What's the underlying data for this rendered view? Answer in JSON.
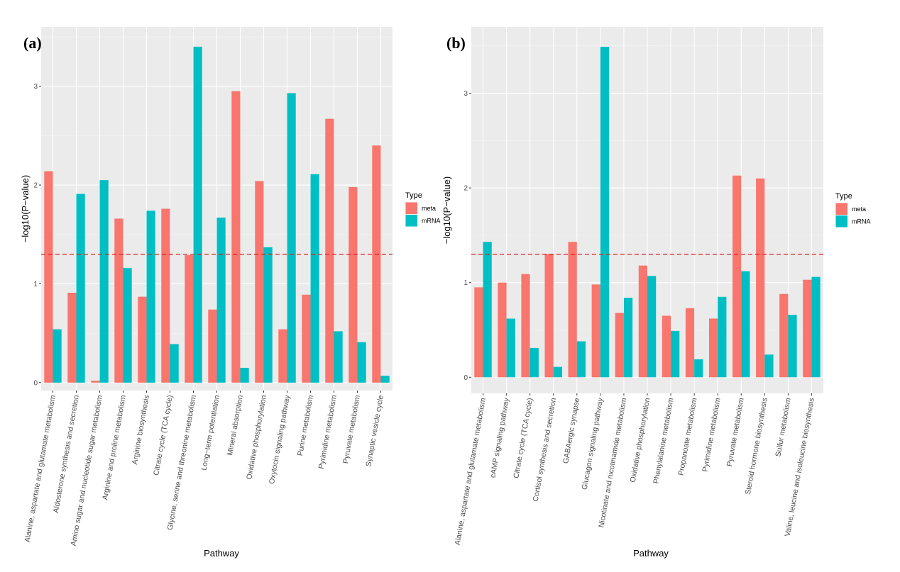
{
  "colors": {
    "meta": "#F8766D",
    "mRNA": "#00BFC4",
    "threshold": "#E41A1C"
  },
  "chart_data": [
    {
      "type": "bar",
      "panel_tag": "(a)",
      "xlabel": "Pathway",
      "ylabel": "−log10(P−value)",
      "ylim": [
        -0.08,
        3.6
      ],
      "yticks": [
        0,
        1,
        2,
        3
      ],
      "grid": true,
      "threshold": 1.3,
      "legend": {
        "title": "Type",
        "placement": "right",
        "entries": [
          "meta",
          "mRNA"
        ]
      },
      "categories": [
        "Alanine, aspartate and glutamate metabolism",
        "Aldosterone synthesis and secretion",
        "Amino sugar and nucleotide sugar metabolism",
        "Arginine and proline metabolism",
        "Arginine biosynthesis",
        "Citrate cycle (TCA cycle)",
        "Glycine, serine and threonine metabolism",
        "Long−term potentiation",
        "Mineral absorption",
        "Oxidative phosphorylation",
        "Oxytocin signaling pathway",
        "Purine metabolism",
        "Pyrimidine metabolism",
        "Pyruvate metabolism",
        "Synaptic vesicle cycle"
      ],
      "series": [
        {
          "name": "meta",
          "values": [
            2.14,
            0.91,
            0.02,
            1.66,
            0.87,
            1.76,
            1.29,
            0.74,
            2.95,
            2.04,
            0.54,
            0.89,
            2.67,
            1.98,
            2.4
          ]
        },
        {
          "name": "mRNA",
          "values": [
            0.54,
            1.91,
            2.05,
            1.16,
            1.74,
            0.39,
            3.4,
            1.67,
            0.15,
            1.37,
            2.93,
            2.11,
            0.52,
            0.41,
            0.07
          ]
        }
      ]
    },
    {
      "type": "bar",
      "panel_tag": "(b)",
      "xlabel": "Pathway",
      "ylabel": "−log10(P−value)",
      "ylim": [
        -0.17,
        3.7
      ],
      "yticks": [
        0,
        1,
        2,
        3
      ],
      "grid": true,
      "threshold": 1.3,
      "legend": {
        "title": "Type",
        "placement": "right",
        "entries": [
          "meta",
          "mRNA"
        ]
      },
      "categories": [
        "Alanine, aspartate and glutamate metabolism",
        "cAMP signaling pathway",
        "Citrate cycle (TCA cycle)",
        "Cortisol synthesis and secretion",
        "GABAergic synapse",
        "Glucagon signaling pathway",
        "Nicotinate and nicotinamide metabolism",
        "Oxidative phosphorylation",
        "Phenylalanine metabolism",
        "Propanoate metabolism",
        "Pyrimidine metabolism",
        "Pyruvate metabolism",
        "Steroid hormone biosynthesis",
        "Sulfur metabolism",
        "Valine, leucine and isoleucine biosynthesis"
      ],
      "series": [
        {
          "name": "meta",
          "values": [
            0.95,
            1.0,
            1.09,
            1.3,
            1.43,
            0.98,
            0.68,
            1.18,
            0.65,
            0.73,
            0.62,
            2.13,
            2.1,
            0.88,
            1.03
          ]
        },
        {
          "name": "mRNA",
          "values": [
            1.43,
            0.62,
            0.31,
            0.11,
            0.38,
            3.49,
            0.84,
            1.07,
            0.49,
            0.19,
            0.85,
            1.12,
            0.24,
            0.66,
            1.06
          ]
        }
      ]
    }
  ]
}
